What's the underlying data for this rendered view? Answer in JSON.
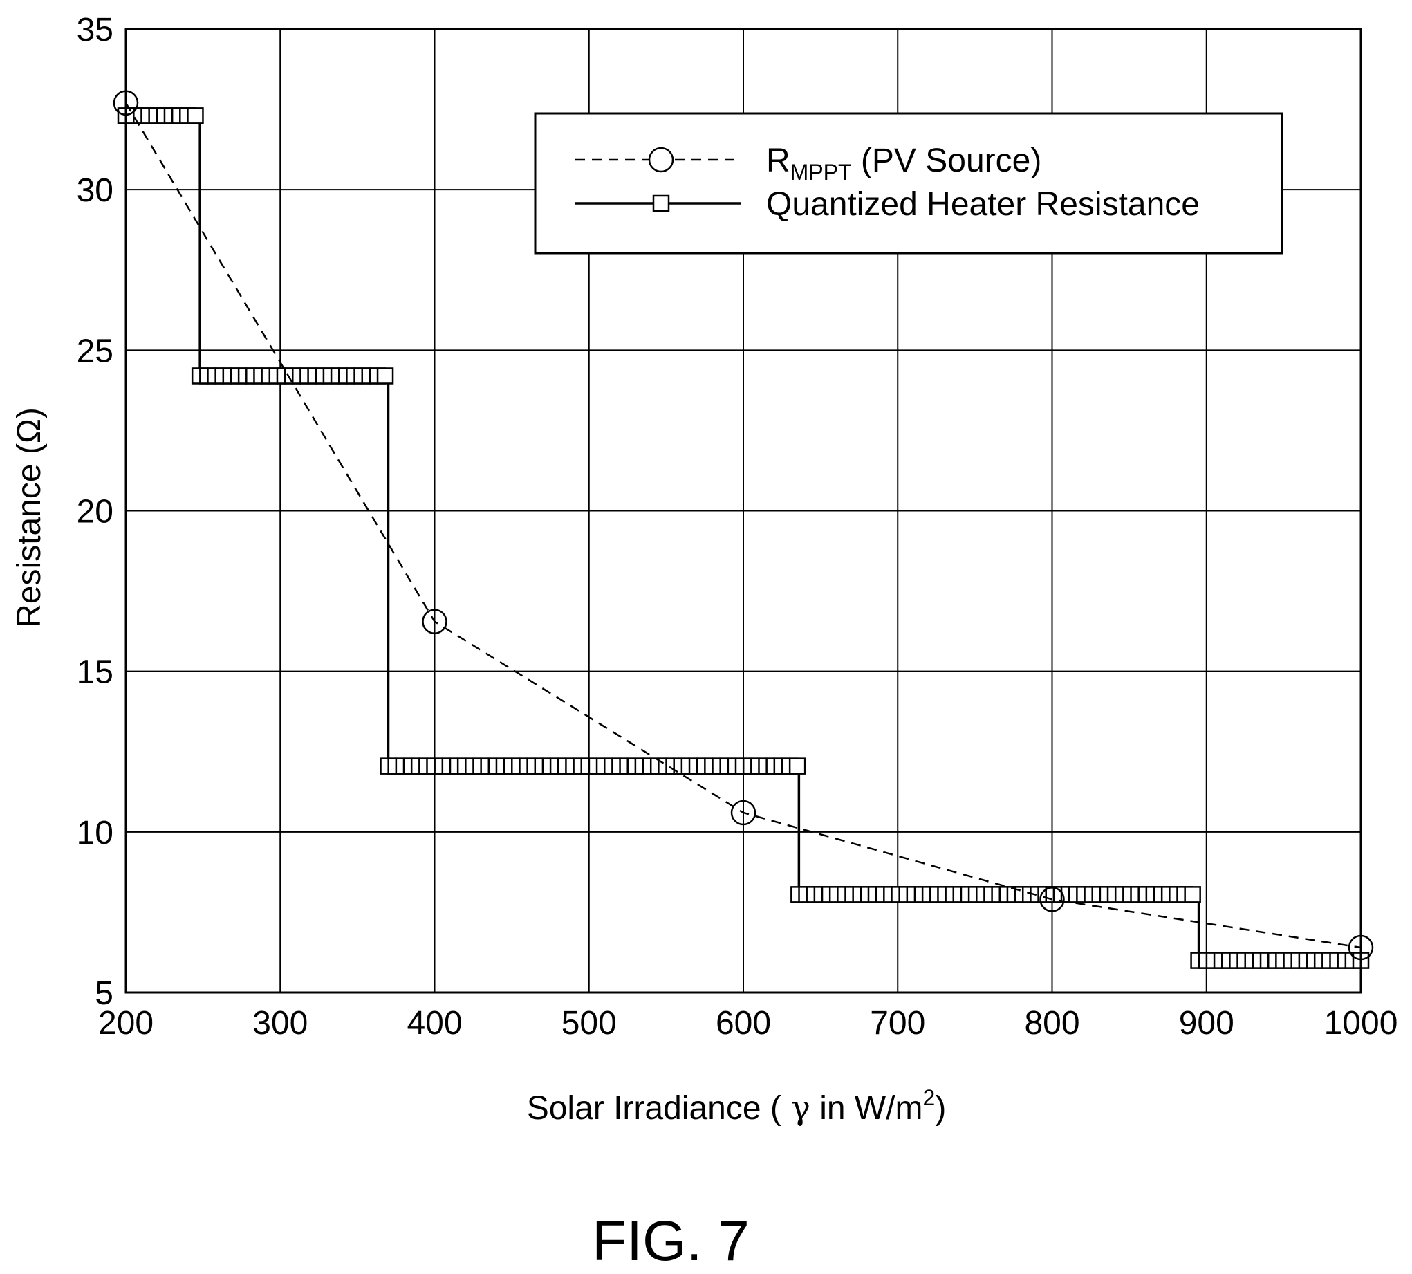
{
  "caption": "FIG. 7",
  "chart_data": {
    "type": "line",
    "title": "",
    "xlabel_parts": [
      "Solar Irradiance ( ",
      "γ",
      " in W/m",
      "2",
      ")"
    ],
    "ylabel": "Resistance (Ω)",
    "xlim": [
      200,
      1000
    ],
    "ylim": [
      5,
      35
    ],
    "xticks": [
      200,
      300,
      400,
      500,
      600,
      700,
      800,
      900,
      1000
    ],
    "yticks": [
      5,
      10,
      15,
      20,
      25,
      30,
      35
    ],
    "grid": true,
    "legend": {
      "placement": "top-right",
      "entries": [
        {
          "main": "R",
          "sub": "MPPT",
          "rest": " (PV Source)"
        },
        {
          "main": "Quantized Heater Resistance",
          "sub": "",
          "rest": ""
        }
      ]
    },
    "series": [
      {
        "name": "RMPPT (PV Source)",
        "style": "dashed",
        "marker": "circle",
        "x": [
          200,
          400,
          600,
          800,
          1000
        ],
        "y": [
          32.7,
          16.55,
          10.6,
          7.9,
          6.4
        ]
      },
      {
        "name": "Quantized Heater Resistance",
        "style": "solid",
        "marker": "square",
        "steps": [
          {
            "x_start": 200,
            "x_end": 248,
            "y": 32.3
          },
          {
            "x_start": 248,
            "x_end": 370,
            "y": 24.2
          },
          {
            "x_start": 370,
            "x_end": 636,
            "y": 12.05
          },
          {
            "x_start": 636,
            "x_end": 895,
            "y": 8.05
          },
          {
            "x_start": 895,
            "x_end": 1000,
            "y": 6.0
          }
        ],
        "marker_spacing": 5
      }
    ]
  }
}
